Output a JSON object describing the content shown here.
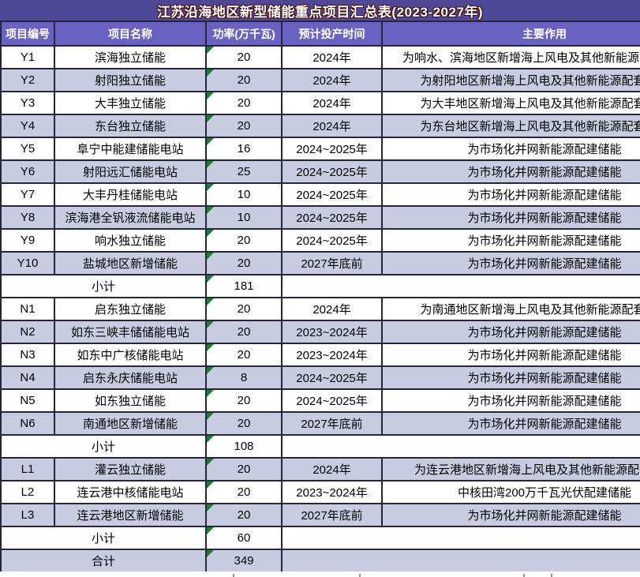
{
  "title": "江苏沿海地区新型储能重点项目汇总表(2023-2027年)",
  "columns": [
    "项目编号",
    "项目名称",
    "功率(万千瓦)",
    "预计投产时间",
    "主要作用"
  ],
  "colors": {
    "title_bg": "#4F4896",
    "header_bg": "#6A62C0",
    "row_light": "#C9CCE1",
    "border": "#262640",
    "triangle": "#1E7E34",
    "title_outline": "#4a0d0d"
  },
  "rows": [
    {
      "kind": "data",
      "id": "Y1",
      "name": "滨海独立储能",
      "power": "20",
      "time": "2024年",
      "role": "为响水、滨海地区新增海上风电及其他新能源配套储能",
      "shade": "white"
    },
    {
      "kind": "data",
      "id": "Y2",
      "name": "射阳独立储能",
      "power": "20",
      "time": "2024年",
      "role": "为射阳地区新增海上风电及其他新能源配套储能",
      "shade": "light"
    },
    {
      "kind": "data",
      "id": "Y3",
      "name": "大丰独立储能",
      "power": "20",
      "time": "2024年",
      "role": "为大丰地区新增海上风电及其他新能源配套储能",
      "shade": "white"
    },
    {
      "kind": "data",
      "id": "Y4",
      "name": "东台独立储能",
      "power": "20",
      "time": "2024年",
      "role": "为东台地区新增海上风电及其他新能源配套储能",
      "shade": "light"
    },
    {
      "kind": "data",
      "id": "Y5",
      "name": "阜宁中能建储能电站",
      "power": "16",
      "time": "2024~2025年",
      "role": "为市场化并网新能源配建储能",
      "shade": "white"
    },
    {
      "kind": "data",
      "id": "Y6",
      "name": "射阳远汇储能电站",
      "power": "25",
      "time": "2024~2025年",
      "role": "为市场化并网新能源配建储能",
      "shade": "light"
    },
    {
      "kind": "data",
      "id": "Y7",
      "name": "大丰丹桂储能电站",
      "power": "10",
      "time": "2024~2025年",
      "role": "为市场化并网新能源配建储能",
      "shade": "white"
    },
    {
      "kind": "data",
      "id": "Y8",
      "name": "滨海港全钒液流储能电站",
      "power": "10",
      "time": "2024~2025年",
      "role": "为市场化并网新能源配建储能",
      "shade": "light"
    },
    {
      "kind": "data",
      "id": "Y9",
      "name": "响水独立储能",
      "power": "20",
      "time": "2024~2025年",
      "role": "为市场化并网新能源配建储能",
      "shade": "white"
    },
    {
      "kind": "data",
      "id": "Y10",
      "name": "盐城地区新增储能",
      "power": "20",
      "time": "2027年底前",
      "role": "为市场化并网新能源配建储能",
      "shade": "light"
    },
    {
      "kind": "subtotal",
      "label": "小计",
      "power": "181",
      "shade": "white"
    },
    {
      "kind": "data",
      "id": "N1",
      "name": "启东独立储能",
      "power": "20",
      "time": "2024年",
      "role": "为南通地区新增海上风电及其他新能源配套储能",
      "shade": "white"
    },
    {
      "kind": "data",
      "id": "N2",
      "name": "如东三峡丰储储能电站",
      "power": "20",
      "time": "2023~2024年",
      "role": "为市场化并网新能源配建储能",
      "shade": "light"
    },
    {
      "kind": "data",
      "id": "N3",
      "name": "如东中广核储能电站",
      "power": "20",
      "time": "2023~2024年",
      "role": "为市场化并网新能源配建储能",
      "shade": "white"
    },
    {
      "kind": "data",
      "id": "N4",
      "name": "启东永庆储能电站",
      "power": "8",
      "time": "2024~2025年",
      "role": "为市场化并网新能源配建储能",
      "shade": "light"
    },
    {
      "kind": "data",
      "id": "N5",
      "name": "如东独立储能",
      "power": "20",
      "time": "2024~2025年",
      "role": "为市场化并网新能源配建储能",
      "shade": "white"
    },
    {
      "kind": "data",
      "id": "N6",
      "name": "南通地区新增储能",
      "power": "20",
      "time": "2027年底前",
      "role": "为市场化并网新能源配建储能",
      "shade": "light"
    },
    {
      "kind": "subtotal",
      "label": "小计",
      "power": "108",
      "shade": "white"
    },
    {
      "kind": "data",
      "id": "L1",
      "name": "灌云独立储能",
      "power": "20",
      "time": "2024年",
      "role": "为连云港地区新增海上风电及其他新能源配套储能",
      "shade": "light"
    },
    {
      "kind": "data",
      "id": "L2",
      "name": "连云港中核储能电站",
      "power": "20",
      "time": "2023~2024年",
      "role": "中核田湾200万千瓦光伏配建储能",
      "shade": "white"
    },
    {
      "kind": "data",
      "id": "L3",
      "name": "连云港地区新增储能",
      "power": "20",
      "time": "2027年底前",
      "role": "为市场化并网新能源配建储能",
      "shade": "light"
    },
    {
      "kind": "subtotal",
      "label": "小计",
      "power": "60",
      "shade": "white"
    },
    {
      "kind": "total",
      "label": "合计",
      "power": "349",
      "shade": "light"
    }
  ]
}
